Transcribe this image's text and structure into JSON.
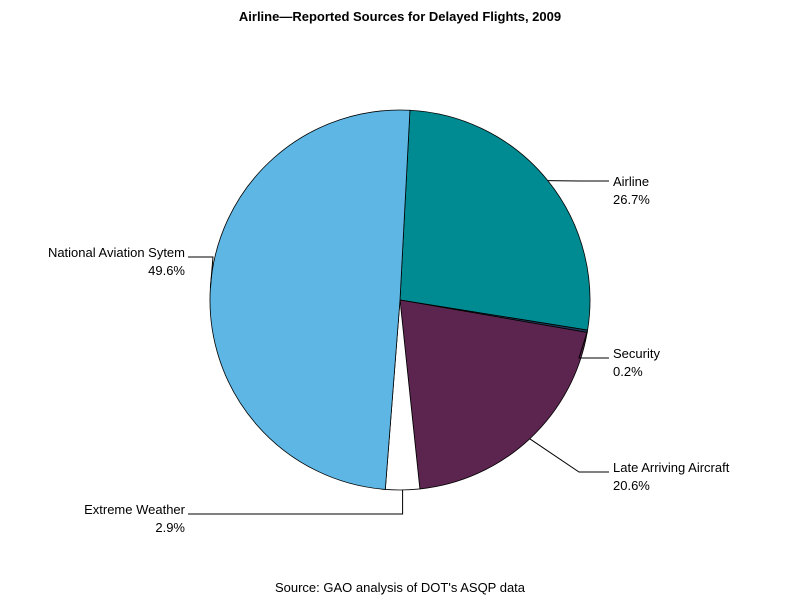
{
  "chart_data": {
    "type": "pie",
    "title": "Airline—Reported Sources for Delayed Flights, 2009",
    "source": "Source: GAO analysis of DOT's ASQP data",
    "slices": [
      {
        "name": "Airline",
        "value": 26.7,
        "label": "26.7%",
        "color": "#008b92"
      },
      {
        "name": "Security",
        "value": 0.2,
        "label": "0.2%",
        "color": "#1f3b5a"
      },
      {
        "name": "Late Arriving Aircraft",
        "value": 20.6,
        "label": "20.6%",
        "color": "#5c2550"
      },
      {
        "name": "Extreme Weather",
        "value": 2.9,
        "label": "2.9%",
        "color": "#ffffff"
      },
      {
        "name": "National Aviation Sytem",
        "value": 49.6,
        "label": "49.6%",
        "color": "#5db6e4"
      }
    ]
  }
}
